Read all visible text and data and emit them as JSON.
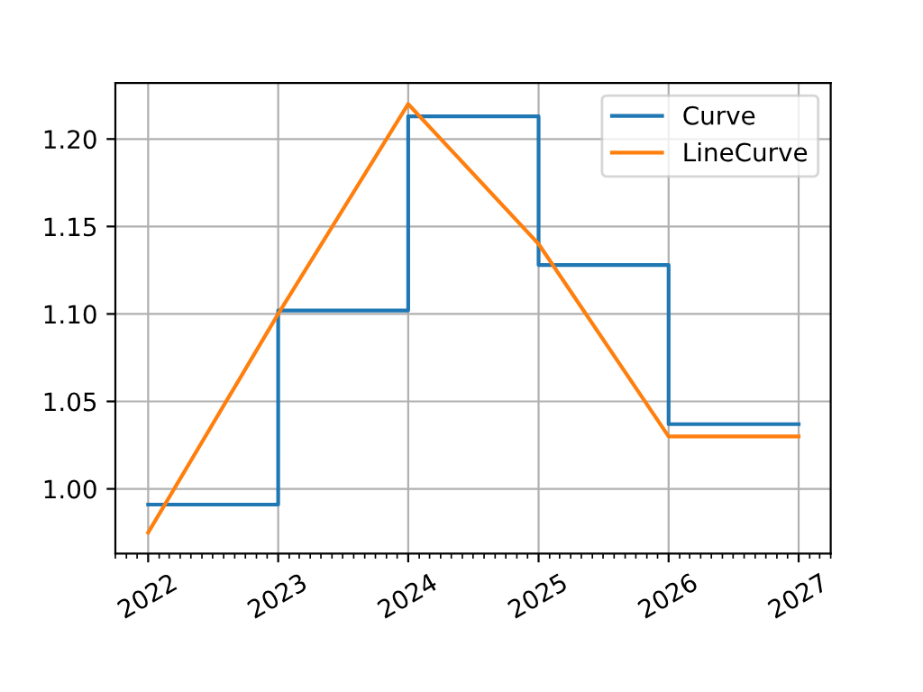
{
  "chart_data": {
    "type": "line",
    "x": [
      "2022",
      "2023",
      "2024",
      "2025",
      "2026",
      "2027"
    ],
    "series": [
      {
        "name": "Curve",
        "type": "step",
        "color": "#1f77b4",
        "values": [
          0.991,
          1.102,
          1.213,
          1.128,
          1.037,
          1.037
        ]
      },
      {
        "name": "LineCurve",
        "color": "#ff7f0e",
        "values": [
          0.975,
          1.1,
          1.22,
          1.14,
          1.03,
          1.03
        ]
      }
    ],
    "xlim": [
      "2021-10-01",
      "2027-04-01"
    ],
    "xticks": [
      "2022",
      "2023",
      "2024",
      "2025",
      "2026",
      "2027"
    ],
    "ylim": [
      0.963,
      1.232
    ],
    "yticks": [
      {
        "value": 1.0,
        "label": "1.00"
      },
      {
        "value": 1.05,
        "label": "1.05"
      },
      {
        "value": 1.1,
        "label": "1.10"
      },
      {
        "value": 1.15,
        "label": "1.15"
      },
      {
        "value": 1.2,
        "label": "1.20"
      }
    ],
    "grid": true,
    "legend": "top right",
    "marker": "none",
    "line_style": "solid"
  }
}
